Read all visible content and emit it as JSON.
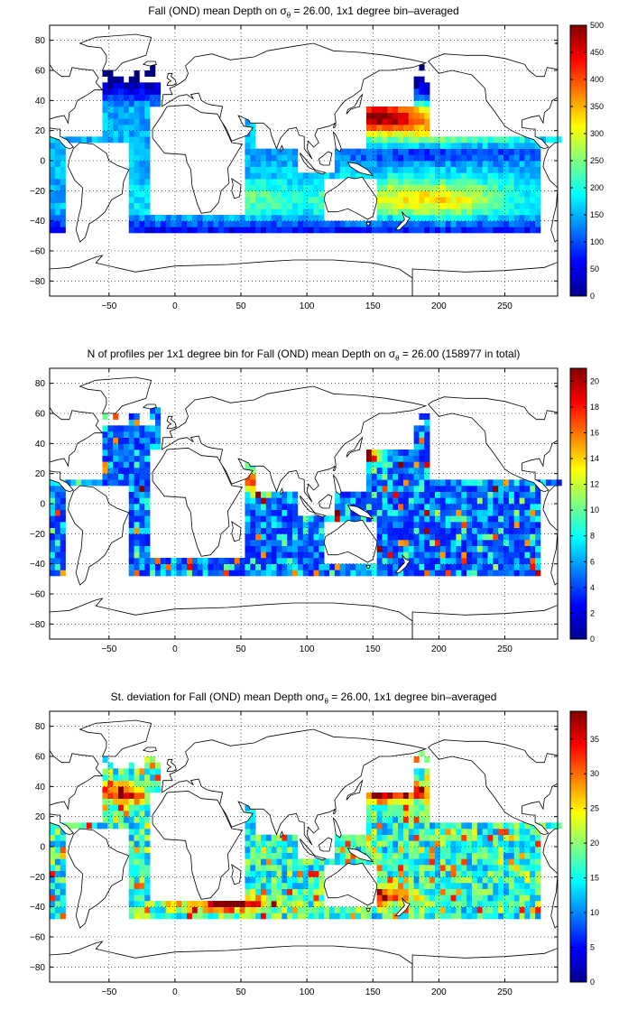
{
  "figure": {
    "panels": [
      {
        "id": "mean-depth",
        "title_main": "Fall (OND) mean Depth on ",
        "title_sym": "σ",
        "title_sub": "θ",
        "title_rest": " = 26.00, 1x1 degree bin–averaged",
        "colorbar": {
          "min": 0,
          "max": 500,
          "ticks": [
            0,
            50,
            100,
            150,
            200,
            250,
            300,
            350,
            400,
            450,
            500
          ]
        }
      },
      {
        "id": "profile-count",
        "title_main": "N of profiles per 1x1 degree bin for Fall (OND) mean Depth on ",
        "title_sym": "σ",
        "title_sub": "θ",
        "title_rest": " = 26.00 (158977 in total)",
        "colorbar": {
          "min": 0,
          "max": 21,
          "ticks": [
            0,
            2,
            4,
            6,
            8,
            10,
            12,
            14,
            16,
            18,
            20
          ]
        }
      },
      {
        "id": "std-deviation",
        "title_main": "St. deviation for Fall (OND) mean Depth on",
        "title_sym": "σ",
        "title_sub": "θ",
        "title_rest": " = 26.00, 1x1 degree bin–averaged",
        "colorbar": {
          "min": 0,
          "max": 39,
          "ticks": [
            0,
            5,
            10,
            15,
            20,
            25,
            30,
            35
          ]
        }
      }
    ],
    "map_axes": {
      "xlim": [
        -95,
        290
      ],
      "ylim": [
        -90,
        90
      ],
      "xticks": [
        -50,
        0,
        50,
        100,
        150,
        200,
        250
      ],
      "yticks": [
        -80,
        -60,
        -40,
        -20,
        0,
        20,
        40,
        60,
        80
      ],
      "grid": "dotted"
    },
    "colormap": "jet"
  }
}
